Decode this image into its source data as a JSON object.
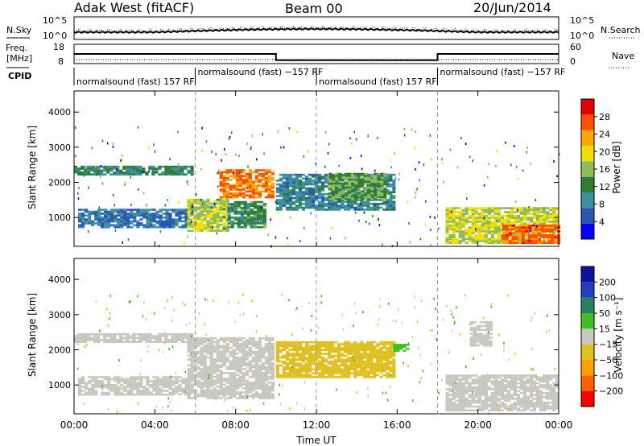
{
  "header": {
    "station": "Adak West (fitACF)",
    "beam": "Beam 00",
    "date": "20/Jun/2014"
  },
  "top_panels": {
    "nsky": {
      "label": "N.Sky",
      "ticks": [
        "10^5",
        "10^0"
      ]
    },
    "nsearch": {
      "label": "N.Search",
      "ticks": [
        "10^5",
        "10^0"
      ]
    },
    "freq": {
      "label_line1": "Freq.",
      "label_line2": "[MHz]",
      "ticks": [
        "18",
        "8"
      ]
    },
    "nave": {
      "label": "Nave",
      "ticks": [
        "60",
        "0"
      ]
    },
    "cpid": {
      "label": "CPID"
    },
    "cpid_segments": [
      {
        "label": "normalsound (fast) 157 RF",
        "start_hour": 0
      },
      {
        "label": "normalsound (fast) −157 RF",
        "start_hour": 6
      },
      {
        "label": "normalsound (fast) 157 RF",
        "start_hour": 12
      },
      {
        "label": "normalsound (fast) −157 RF",
        "start_hour": 18
      }
    ]
  },
  "colors": {
    "power_scale": [
      "#0000ff",
      "#2a57b0",
      "#3d8fa0",
      "#2e7d32",
      "#8fbc5a",
      "#f0e000",
      "#ffa500",
      "#ff5000",
      "#e00000"
    ],
    "velocity_scale": [
      "#ff0000",
      "#ff6000",
      "#ffa000",
      "#e0c020",
      "#c8c8c0",
      "#40c020",
      "#2a8060",
      "#2040c0",
      "#1010a0"
    ]
  },
  "chart_data": [
    {
      "type": "heatmap",
      "quantity": "Power",
      "ylabel": "Slant Range [km]",
      "xlabel": "Time UT",
      "x_ticks": [
        "00:00",
        "04:00",
        "08:00",
        "12:00",
        "16:00",
        "20:00",
        "00:00"
      ],
      "y_ticks": [
        1000,
        2000,
        3000,
        4000
      ],
      "xlim_hours": [
        0,
        24
      ],
      "ylim_km": [
        180,
        4600
      ],
      "colorbar_label": "Power [dB]",
      "colorbar_ticks": [
        28,
        24,
        20,
        16,
        12,
        8,
        4
      ],
      "colorbar_range": [
        0,
        32
      ],
      "dashed_lines_hours": [
        6,
        12,
        18
      ],
      "regions": [
        {
          "t0": 0.0,
          "t1": 5.8,
          "r0": 2200,
          "r1": 2450,
          "v": 11
        },
        {
          "t0": 0.2,
          "t1": 5.8,
          "r0": 700,
          "r1": 1250,
          "v": 7
        },
        {
          "t0": 5.6,
          "t1": 7.6,
          "r0": 600,
          "r1": 1500,
          "v": 17
        },
        {
          "t0": 7.6,
          "t1": 9.5,
          "r0": 700,
          "r1": 1450,
          "v": 12
        },
        {
          "t0": 7.2,
          "t1": 9.9,
          "r0": 1550,
          "r1": 2350,
          "v": 25
        },
        {
          "t0": 10.0,
          "t1": 15.8,
          "r0": 1200,
          "r1": 2200,
          "v": 9
        },
        {
          "t0": 12.6,
          "t1": 15.4,
          "r0": 1500,
          "r1": 2250,
          "v": 14
        },
        {
          "t0": 18.4,
          "t1": 24.0,
          "r0": 250,
          "r1": 1250,
          "v": 18
        },
        {
          "t0": 21.2,
          "t1": 24.0,
          "r0": 250,
          "r1": 800,
          "v": 26
        }
      ]
    },
    {
      "type": "heatmap",
      "quantity": "Velocity",
      "ylabel": "Slant Range [km]",
      "xlabel": "Time UT",
      "x_ticks": [
        "00:00",
        "04:00",
        "08:00",
        "12:00",
        "16:00",
        "20:00",
        "00:00"
      ],
      "y_ticks": [
        1000,
        2000,
        3000,
        4000
      ],
      "xlim_hours": [
        0,
        24
      ],
      "ylim_km": [
        180,
        4600
      ],
      "colorbar_label": "Velocity [m s⁻¹]",
      "colorbar_ticks": [
        200,
        100,
        50,
        15,
        -15,
        -50,
        -100,
        -200
      ],
      "dashed_lines_hours": [
        6,
        12,
        18
      ],
      "regions": [
        {
          "t0": 0.0,
          "t1": 5.8,
          "r0": 2200,
          "r1": 2450,
          "v": 0
        },
        {
          "t0": 0.2,
          "t1": 5.8,
          "r0": 700,
          "r1": 1250,
          "v": 0
        },
        {
          "t0": 5.6,
          "t1": 9.9,
          "r0": 600,
          "r1": 2350,
          "v": -5
        },
        {
          "t0": 10.0,
          "t1": 15.8,
          "r0": 1200,
          "r1": 2200,
          "v": -40
        },
        {
          "t0": 15.8,
          "t1": 16.6,
          "r0": 1950,
          "r1": 2150,
          "v": 30
        },
        {
          "t0": 18.4,
          "t1": 24.0,
          "r0": 250,
          "r1": 1250,
          "v": 0
        },
        {
          "t0": 19.6,
          "t1": 20.6,
          "r0": 2100,
          "r1": 2800,
          "v": 0
        }
      ]
    }
  ]
}
